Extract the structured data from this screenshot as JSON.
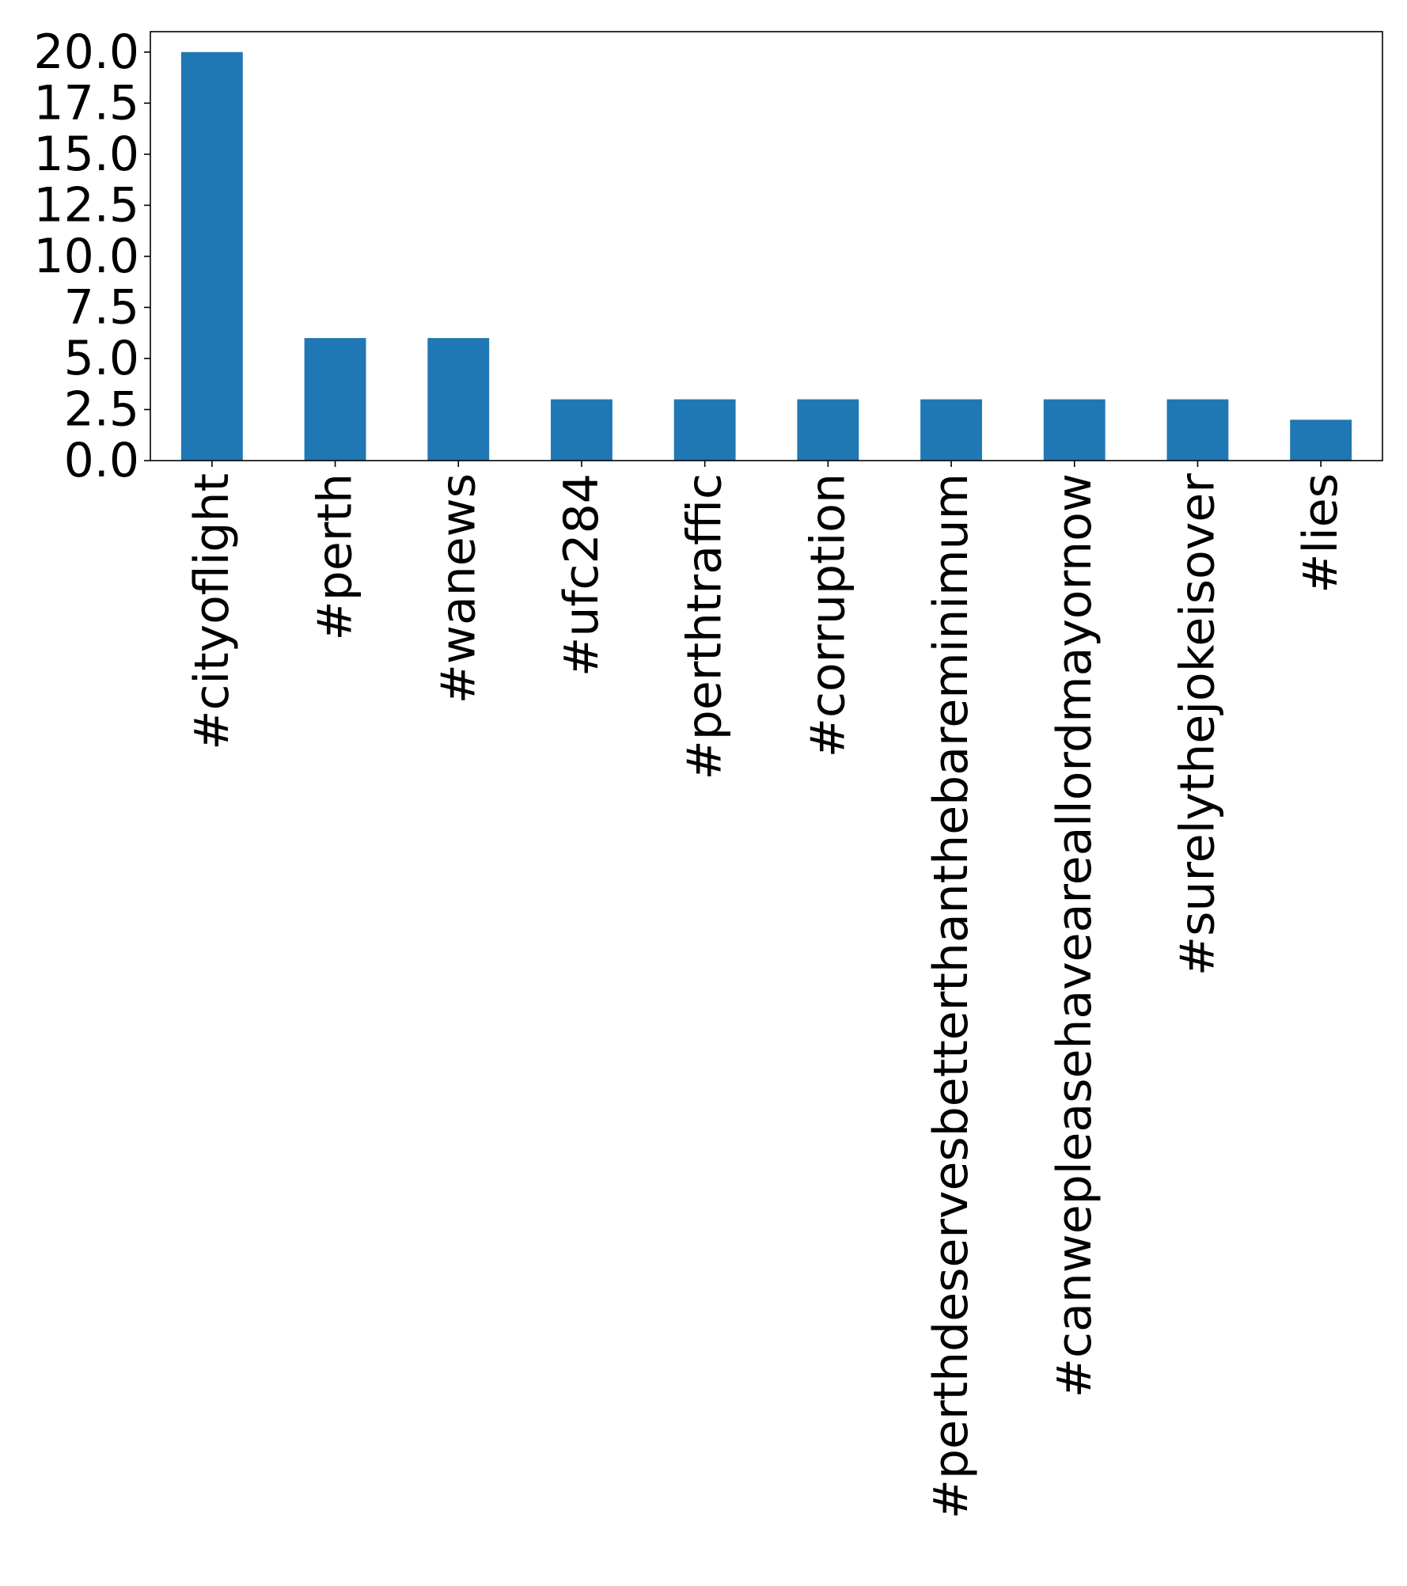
{
  "chart_data": {
    "type": "bar",
    "title": "",
    "xlabel": "",
    "ylabel": "",
    "categories": [
      "#cityoflight",
      "#perth",
      "#wanews",
      "#ufc284",
      "#perthtraffic",
      "#corruption",
      "#perthdeservesbetterthanthebareminimum",
      "#canwepleasehaveareallordmayornow",
      "#surelythejokeisover",
      "#lies"
    ],
    "values": [
      20,
      6,
      6,
      3,
      3,
      3,
      3,
      3,
      3,
      2
    ],
    "ylim": [
      0,
      21
    ],
    "yticks": [
      "0.0",
      "2.5",
      "5.0",
      "7.5",
      "10.0",
      "12.5",
      "15.0",
      "17.5",
      "20.0"
    ],
    "xtick_rotation": "vertical",
    "grid": false,
    "legend": "none",
    "colors": {
      "bar": "#1f77b4",
      "axis": "#000000",
      "background": "#ffffff"
    }
  }
}
